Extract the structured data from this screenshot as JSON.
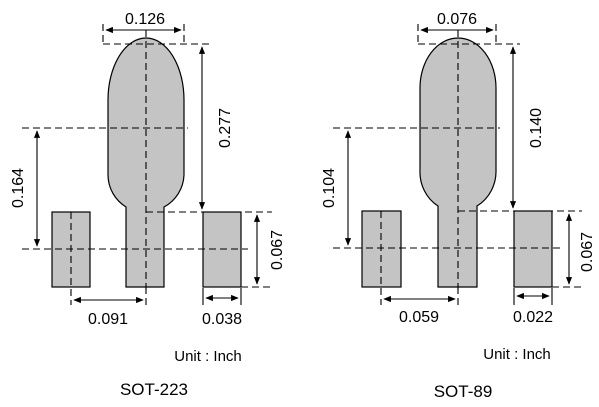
{
  "left": {
    "caption": "SOT-223",
    "unit": "Unit : Inch",
    "dims": {
      "top_width": "0.126",
      "tab_height": "0.277",
      "pitch_vertical": "0.164",
      "pad_height": "0.067",
      "pitch_horizontal": "0.091",
      "pad_width": "0.038"
    }
  },
  "right": {
    "caption": "SOT-89",
    "unit": "Unit : Inch",
    "dims": {
      "top_width": "0.076",
      "tab_height": "0.140",
      "pitch_vertical": "0.104",
      "pad_height": "0.067",
      "pitch_horizontal": "0.059",
      "pad_width": "0.022"
    }
  }
}
